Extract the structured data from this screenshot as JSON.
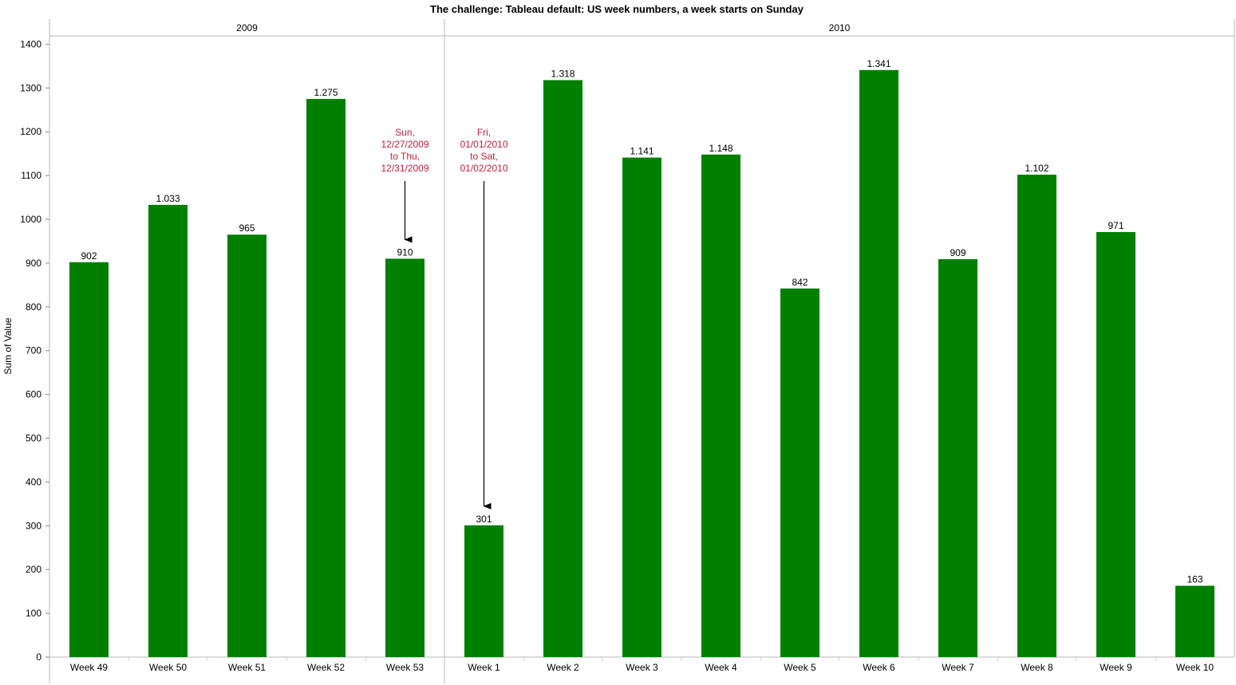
{
  "chart_data": {
    "type": "bar",
    "title": "The challenge: Tableau default: US week numbers, a week starts on Sunday",
    "ylabel": "Sum of Value",
    "xlabel": "",
    "ylim": [
      0,
      1450
    ],
    "yticks": [
      0,
      100,
      200,
      300,
      400,
      500,
      600,
      700,
      800,
      900,
      1000,
      1100,
      1200,
      1300,
      1400
    ],
    "grid": false,
    "bar_color": "#008000",
    "annotation_color": "#c0213a",
    "panels": [
      {
        "year": "2009",
        "categories": [
          "Week 49",
          "Week 50",
          "Week 51",
          "Week 52",
          "Week 53"
        ],
        "values": [
          902,
          1033,
          965,
          1275,
          910
        ],
        "labels": [
          "902",
          "1.033",
          "965",
          "1.275",
          "910"
        ]
      },
      {
        "year": "2010",
        "categories": [
          "Week 1",
          "Week 2",
          "Week 3",
          "Week 4",
          "Week 5",
          "Week 6",
          "Week 7",
          "Week 8",
          "Week 9",
          "Week 10"
        ],
        "values": [
          301,
          1318,
          1141,
          1148,
          842,
          1341,
          909,
          1102,
          971,
          163
        ],
        "labels": [
          "301",
          "1.318",
          "1.141",
          "1.148",
          "842",
          "1.341",
          "909",
          "1.102",
          "971",
          "163"
        ]
      }
    ],
    "annotations": [
      {
        "target": "Week 53",
        "lines": [
          "Sun,",
          "12/27/2009",
          "to Thu,",
          "12/31/2009"
        ]
      },
      {
        "target": "Week 1",
        "lines": [
          "Fri,",
          "01/01/2010",
          "to Sat,",
          "01/02/2010"
        ]
      }
    ]
  }
}
